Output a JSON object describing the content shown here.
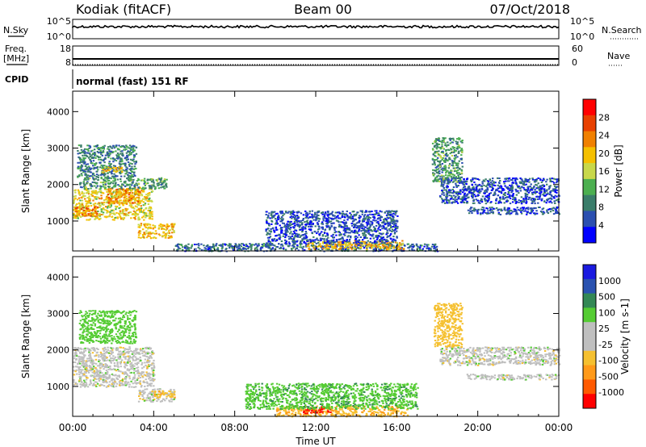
{
  "header": {
    "station": "Kodiak (fitACF)",
    "beam": "Beam 00",
    "date": "07/Oct/2018"
  },
  "noise_panel": {
    "left_label": "N.Sky",
    "right_label": "N.Search",
    "left_ticks": [
      "10^5",
      "10^0"
    ],
    "right_ticks": [
      "10^5",
      "10^0"
    ]
  },
  "freq_panel": {
    "left_label_1": "Freq.",
    "left_label_2": "[MHz]",
    "right_label": "Nave",
    "left_ticks": [
      "18",
      "8"
    ],
    "right_ticks": [
      "60",
      "0"
    ]
  },
  "cpid": {
    "label": "CPID",
    "value": "normal (fast) 151 RF"
  },
  "colors": {
    "power_scale": [
      "#0000ff",
      "#2b4fb0",
      "#3a7d6a",
      "#4caf50",
      "#c8d84a",
      "#f5c000",
      "#f08000",
      "#e84000",
      "#ff0000"
    ],
    "velocity_scale": [
      "#ff0000",
      "#ff5a00",
      "#ff9a1a",
      "#f5c030",
      "#bfbfbf",
      "#bfbfbf",
      "#55cc33",
      "#338855",
      "#2a52b0",
      "#1a1ae0"
    ]
  },
  "chart_data": [
    {
      "type": "heatmap",
      "name": "power",
      "ylabel": "Slant Range [km]",
      "ylim": [
        180,
        4560
      ],
      "yticks": [
        "1000",
        "2000",
        "3000",
        "4000"
      ],
      "xticks": [
        "00:00",
        "04:00",
        "08:00",
        "12:00",
        "16:00",
        "20:00",
        "00:00"
      ],
      "xlim_hours": [
        0,
        24
      ],
      "colorbar_label": "Power [dB]",
      "colorbar_ticks": [
        "4",
        "8",
        "12",
        "16",
        "20",
        "24",
        "28"
      ],
      "colorbar_range": [
        0,
        32
      ],
      "regions": [
        {
          "t0": 0.0,
          "t1": 3.9,
          "r0": 1050,
          "r1": 1900,
          "value": 20
        },
        {
          "t0": 0.0,
          "t1": 1.2,
          "r0": 1150,
          "r1": 1400,
          "value": 26
        },
        {
          "t0": 1.7,
          "t1": 3.3,
          "r0": 1500,
          "r1": 1950,
          "value": 24
        },
        {
          "t0": 0.3,
          "t1": 4.6,
          "r0": 1900,
          "r1": 2200,
          "value": 12
        },
        {
          "t0": 0.2,
          "t1": 3.1,
          "r0": 2200,
          "r1": 3100,
          "value": 10
        },
        {
          "t0": 1.4,
          "t1": 2.4,
          "r0": 2350,
          "r1": 2500,
          "value": 22
        },
        {
          "t0": 3.2,
          "t1": 5.0,
          "r0": 550,
          "r1": 950,
          "value": 22
        },
        {
          "t0": 5.0,
          "t1": 18.0,
          "r0": 190,
          "r1": 400,
          "value": 8
        },
        {
          "t0": 11.5,
          "t1": 16.3,
          "r0": 240,
          "r1": 480,
          "value": 22
        },
        {
          "t0": 9.5,
          "t1": 16.0,
          "r0": 400,
          "r1": 1300,
          "value": 6
        },
        {
          "t0": 18.1,
          "t1": 24.0,
          "r0": 1500,
          "r1": 2200,
          "value": 6
        },
        {
          "t0": 17.7,
          "t1": 19.2,
          "r0": 2100,
          "r1": 3300,
          "value": 12
        },
        {
          "t0": 19.4,
          "t1": 24.0,
          "r0": 1200,
          "r1": 1400,
          "value": 6
        }
      ]
    },
    {
      "type": "heatmap",
      "name": "velocity",
      "ylabel": "Slant Range [km]",
      "ylim": [
        180,
        4560
      ],
      "yticks": [
        "1000",
        "2000",
        "3000",
        "4000"
      ],
      "xticks": [
        "00:00",
        "04:00",
        "08:00",
        "12:00",
        "16:00",
        "20:00",
        "00:00"
      ],
      "xlim_hours": [
        0,
        24
      ],
      "xlabel": "Time UT",
      "colorbar_label": "Velocity [m s-1]",
      "colorbar_ticks": [
        "-1000",
        "-500",
        "-100",
        "-25",
        "25",
        "100",
        "500",
        "1000"
      ],
      "regions": [
        {
          "t0": 0.0,
          "t1": 4.0,
          "r0": 1000,
          "r1": 2100,
          "value": 0
        },
        {
          "t0": 0.3,
          "t1": 3.1,
          "r0": 2200,
          "r1": 3100,
          "value": 60
        },
        {
          "t0": 3.2,
          "t1": 5.0,
          "r0": 600,
          "r1": 950,
          "value": 0
        },
        {
          "t0": 4.0,
          "t1": 5.0,
          "r0": 700,
          "r1": 900,
          "value": -80
        },
        {
          "t0": 10.0,
          "t1": 16.5,
          "r0": 190,
          "r1": 480,
          "value": -90
        },
        {
          "t0": 11.3,
          "t1": 12.7,
          "r0": 280,
          "r1": 460,
          "value": -1000
        },
        {
          "t0": 8.5,
          "t1": 17.0,
          "r0": 400,
          "r1": 1100,
          "value": 80
        },
        {
          "t0": 18.1,
          "t1": 24.0,
          "r0": 1600,
          "r1": 2100,
          "value": 0
        },
        {
          "t0": 17.8,
          "t1": 19.2,
          "r0": 2100,
          "r1": 3300,
          "value": -60
        },
        {
          "t0": 19.4,
          "t1": 24.0,
          "r0": 1200,
          "r1": 1350,
          "value": 0
        }
      ]
    }
  ]
}
